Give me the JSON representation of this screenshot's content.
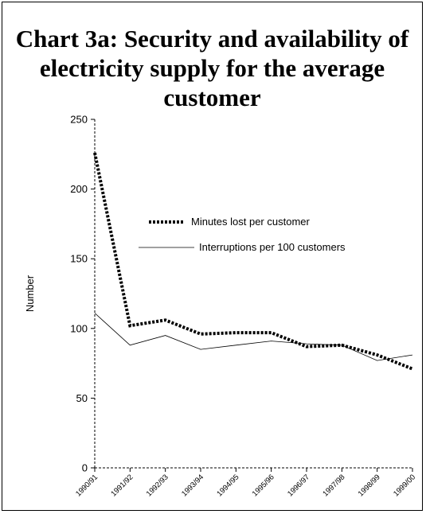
{
  "chart_data": {
    "type": "line",
    "title": "Chart 3a: Security and availability of electricity supply for the average customer",
    "xlabel": "",
    "ylabel": "Number",
    "ylim": [
      0,
      250
    ],
    "yticks": [
      0,
      50,
      100,
      150,
      200,
      250
    ],
    "categories": [
      "1990/91",
      "1991/92",
      "1992/93",
      "1993/94",
      "1994/95",
      "1995/96",
      "1996/97",
      "1997/98",
      "1998/99",
      "1999/00"
    ],
    "series": [
      {
        "name": "Minutes lost per customer",
        "values": [
          226,
          102,
          106,
          96,
          97,
          97,
          87,
          88,
          81,
          71
        ],
        "style": "thick-dotted",
        "color": "#000000"
      },
      {
        "name": "Interruptions per 100 customers",
        "values": [
          111,
          88,
          95,
          85,
          88,
          91,
          89,
          88,
          77,
          81
        ],
        "style": "thin-solid",
        "color": "#000000"
      }
    ],
    "grid": false,
    "legend_position": "upper-middle"
  }
}
